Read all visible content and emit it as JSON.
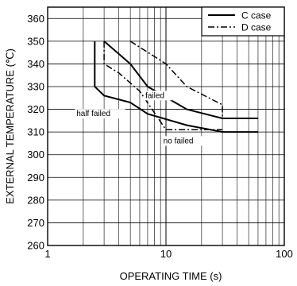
{
  "chart_data": {
    "type": "line",
    "title": "",
    "xlabel": "OPERATING TIME  (s)",
    "ylabel": "EXTERNAL TEMPERATURE (℃)",
    "xscale": "log",
    "xlim": [
      1,
      100
    ],
    "ylim": [
      260,
      365
    ],
    "xticks": [
      1,
      10,
      100
    ],
    "xtick_labels": [
      "1",
      "10",
      "100"
    ],
    "yticks": [
      260,
      270,
      280,
      290,
      300,
      310,
      320,
      330,
      340,
      350,
      360
    ],
    "ytick_labels": [
      "260",
      "270",
      "280",
      "290",
      "300",
      "310",
      "320",
      "330",
      "340",
      "350",
      "360"
    ],
    "grid": true,
    "legend": {
      "placement": "top-right",
      "entries": [
        "C case",
        "D case"
      ]
    },
    "colors": {
      "line": "#000000",
      "grid": "#000000",
      "background": "#ffffff"
    },
    "series": [
      {
        "name": "C case",
        "style": "solid",
        "x": [
          2.5,
          2.5,
          3,
          5,
          7,
          15,
          30,
          60
        ],
        "y": [
          350,
          330,
          326,
          323,
          318,
          313,
          310,
          310
        ]
      },
      {
        "name": "C case",
        "style": "solid",
        "x": [
          3,
          5,
          7,
          15,
          30,
          60
        ],
        "y": [
          350,
          340,
          330,
          320,
          316,
          316
        ]
      },
      {
        "name": "D case",
        "style": "dashdot",
        "x": [
          3,
          3,
          4,
          6,
          10,
          15,
          30
        ],
        "y": [
          350,
          340,
          336,
          328,
          311,
          311,
          311
        ]
      },
      {
        "name": "D case",
        "style": "dashdot",
        "x": [
          5,
          10,
          15,
          30,
          30
        ],
        "y": [
          350,
          340,
          330,
          322,
          316
        ]
      }
    ],
    "annotations": [
      {
        "text": "failed",
        "x": 6.7,
        "y": 325
      },
      {
        "text": "half failed",
        "x": 1.75,
        "y": 317
      },
      {
        "text": "no failed",
        "x": 9.5,
        "y": 305
      }
    ]
  }
}
